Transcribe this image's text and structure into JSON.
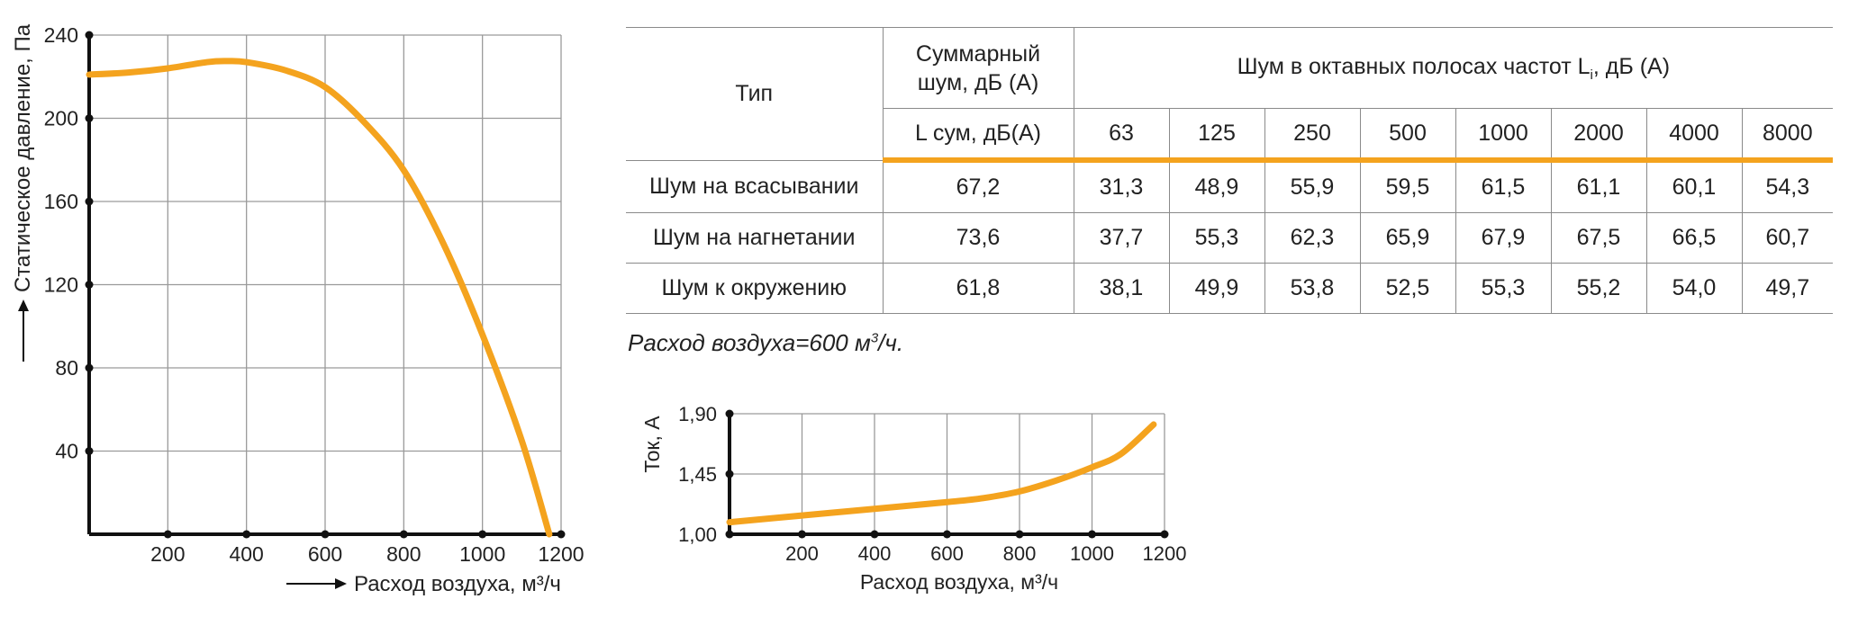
{
  "chart_data": [
    {
      "type": "line",
      "xlabel": "Расход воздуха, м³/ч",
      "ylabel": "Статическое давление, Па",
      "xlim": [
        0,
        1200
      ],
      "ylim": [
        0,
        240
      ],
      "x_ticks": [
        "200",
        "400",
        "600",
        "800",
        "1000",
        "1200"
      ],
      "y_ticks": [
        "40",
        "80",
        "120",
        "160",
        "200",
        "240"
      ],
      "grid": true,
      "line_color": "#f4a31e",
      "series": [
        {
          "x": [
            0,
            100,
            200,
            300,
            350,
            400,
            500,
            600,
            700,
            800,
            900,
            1000,
            1100,
            1170
          ],
          "y": [
            221,
            222,
            224,
            227,
            227.5,
            227,
            223,
            215,
            198,
            175,
            140,
            96,
            45,
            0
          ]
        }
      ]
    },
    {
      "type": "line",
      "xlabel": "Расход воздуха, м³/ч",
      "ylabel": "Ток, А",
      "xlim": [
        0,
        1200
      ],
      "ylim": [
        1.0,
        1.9
      ],
      "x_ticks": [
        "200",
        "400",
        "600",
        "800",
        "1000",
        "1200"
      ],
      "y_ticks": [
        "1,00",
        "1,45",
        "1,90"
      ],
      "grid": true,
      "line_color": "#f4a31e",
      "series": [
        {
          "x": [
            0,
            200,
            400,
            600,
            700,
            800,
            900,
            1000,
            1080,
            1170
          ],
          "y": [
            1.09,
            1.14,
            1.19,
            1.24,
            1.27,
            1.32,
            1.4,
            1.5,
            1.6,
            1.82
          ]
        }
      ]
    }
  ],
  "table": {
    "col_type": "Тип",
    "col_total": "Суммарный шум, дБ (А)",
    "col_octave_prefix": "Шум в октавных полосах частот L",
    "col_octave_sub": "i",
    "col_octave_suffix": ", дБ (А)",
    "sub_total": "L сум, дБ(А)",
    "freqs": [
      "63",
      "125",
      "250",
      "500",
      "1000",
      "2000",
      "4000",
      "8000"
    ],
    "rows": [
      {
        "name": "Шум на всасывании",
        "total": "67,2",
        "values": [
          "31,3",
          "48,9",
          "55,9",
          "59,5",
          "61,5",
          "61,1",
          "60,1",
          "54,3"
        ]
      },
      {
        "name": "Шум на нагнетании",
        "total": "73,6",
        "values": [
          "37,7",
          "55,3",
          "62,3",
          "65,9",
          "67,9",
          "67,5",
          "66,5",
          "60,7"
        ]
      },
      {
        "name": "Шум к окружению",
        "total": "61,8",
        "values": [
          "38,1",
          "49,9",
          "53,8",
          "52,5",
          "55,3",
          "55,2",
          "54,0",
          "49,7"
        ]
      }
    ]
  },
  "note": {
    "text": "Расход воздуха=600 м",
    "sup": "3",
    "suffix": "/ч."
  }
}
